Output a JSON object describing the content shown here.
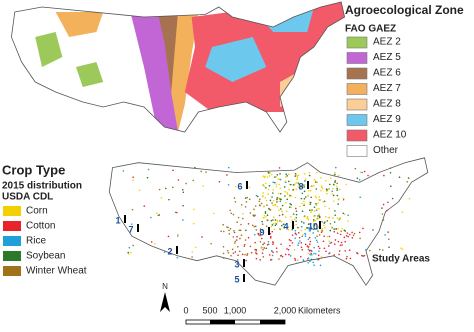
{
  "zone_legend": {
    "title": "Agroecological Zone",
    "subtitle": "FAO GAEZ",
    "items": [
      {
        "label": "AEZ 2",
        "color": "#9cc95a"
      },
      {
        "label": "AEZ 5",
        "color": "#c266d6"
      },
      {
        "label": "AEZ 6",
        "color": "#a7724f"
      },
      {
        "label": "AEZ 7",
        "color": "#f4b15c"
      },
      {
        "label": "AEZ 8",
        "color": "#f9cf95"
      },
      {
        "label": "AEZ 9",
        "color": "#6cc8ec"
      },
      {
        "label": "AEZ 10",
        "color": "#f25a6a"
      },
      {
        "label": "Other",
        "color": "#ffffff"
      }
    ]
  },
  "crop_legend": {
    "title": "Crop Type",
    "subtitle_lines": [
      "2015 distribution",
      "USDA CDL"
    ],
    "items": [
      {
        "label": "Corn",
        "color": "#f5d000"
      },
      {
        "label": "Cotton",
        "color": "#e8232a"
      },
      {
        "label": "Rice",
        "color": "#1fa0d8"
      },
      {
        "label": "Soybean",
        "color": "#2a7a2a"
      },
      {
        "label": "Winter Wheat",
        "color": "#a0721a"
      }
    ]
  },
  "study_areas": {
    "title": "Study Areas",
    "labels": [
      "1",
      "2",
      "3",
      "4",
      "5",
      "6",
      "7",
      "8",
      "9",
      "10"
    ]
  },
  "scale_bar": {
    "labels": [
      "0",
      "500",
      "1,000",
      "2,000"
    ],
    "unit": "Kilometers"
  },
  "north_label": "N"
}
